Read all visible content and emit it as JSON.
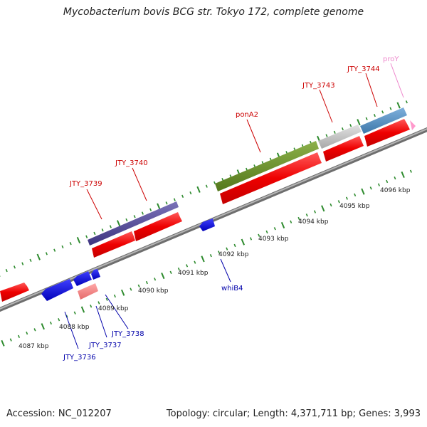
{
  "title": "Mycobacterium bovis BCG str. Tokyo 172, complete genome",
  "accession": "Accession: NC_012207",
  "summary": "Topology: circular; Length: 4,371,711 bp; Genes: 3,993",
  "colors": {
    "backbone": "#909090",
    "tick": "#2e8b2e",
    "forward_label": "#cc0000",
    "reverse_label": "#0000aa",
    "rna_label": "#ee88cc"
  },
  "ticks": [
    "4087 kbp",
    "4088 kbp",
    "4089 kbp",
    "4090 kbp",
    "4091 kbp",
    "4092 kbp",
    "4093 kbp",
    "4094 kbp",
    "4095 kbp",
    "4096 kbp"
  ],
  "genes": [
    {
      "label": "JTY_3736",
      "strand": "reverse"
    },
    {
      "label": "JTY_3737",
      "strand": "reverse"
    },
    {
      "label": "JTY_3738",
      "strand": "reverse"
    },
    {
      "label": "whiB4",
      "strand": "reverse"
    },
    {
      "label": "JTY_3739",
      "strand": "forward"
    },
    {
      "label": "JTY_3740",
      "strand": "forward"
    },
    {
      "label": "ponA2",
      "strand": "forward"
    },
    {
      "label": "JTY_3743",
      "strand": "forward"
    },
    {
      "label": "JTY_3744",
      "strand": "forward"
    },
    {
      "label": "proY",
      "strand": "forward"
    }
  ]
}
